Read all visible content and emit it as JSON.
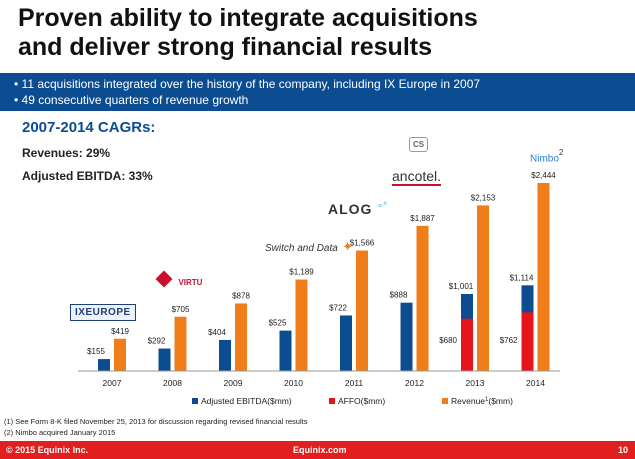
{
  "title_line1": "Proven ability to integrate acquisitions",
  "title_line2": "and deliver strong financial results",
  "bullets": [
    "• 11 acquisitions integrated over the history of the company, including IX Europe in 2007",
    "• 49 consecutive quarters of revenue growth"
  ],
  "cagr": {
    "title": "2007-2014 CAGRs:",
    "revenues": "Revenues: 29%",
    "ebitda": "Adjusted EBITDA: 33%"
  },
  "logos": {
    "ixeurope": "IXEUROPE",
    "virtu": "VIRTU",
    "switch_and_data": "Switch and Data",
    "alog": "ALOG",
    "ancotel": "ancotel.",
    "nimbo": "Nimbo",
    "nimbo_sup": "2",
    "cs": "CS"
  },
  "chart_data": {
    "type": "bar",
    "categories": [
      "2007",
      "2008",
      "2009",
      "2010",
      "2011",
      "2012",
      "2013",
      "2014"
    ],
    "series": [
      {
        "name": "Adjusted EBITDA ($mm)",
        "values": [
          155,
          292,
          404,
          525,
          722,
          888,
          1001,
          1114
        ],
        "labels": [
          "$155",
          "$292",
          "$404",
          "$525",
          "$722",
          "$888",
          "$1,001",
          "$1,114"
        ],
        "color": "#0c4d92"
      },
      {
        "name": "AFFO ($mm)",
        "values": [
          null,
          null,
          null,
          null,
          null,
          null,
          680,
          762
        ],
        "labels": [
          "",
          "",
          "",
          "",
          "",
          "",
          "$680",
          "$762"
        ],
        "color": "#e8141b"
      },
      {
        "name": "Revenue (1) ($mm)",
        "values": [
          419,
          705,
          878,
          1189,
          1566,
          1887,
          2153,
          2444
        ],
        "labels": [
          "$419",
          "$705",
          "$878",
          "$1,189",
          "$1,566",
          "$1,887",
          "$2,153",
          "$2,444"
        ],
        "color": "#ef7d1a"
      }
    ],
    "legend": [
      {
        "label": "Adjusted EBITDA",
        "sup": "",
        "unit": "($mm)",
        "color": "#0c4d92"
      },
      {
        "label": "AFFO",
        "sup": "",
        "unit": "($mm)",
        "color": "#e8141b"
      },
      {
        "label": "Revenue",
        "sup": "1",
        "unit": "($mm)",
        "color": "#ef7d1a"
      }
    ],
    "legend_position": "bottom",
    "grid": false,
    "ylim": [
      0,
      2600
    ]
  },
  "footnotes": [
    "(1)   See Form 8-K filed November 25, 2013 for discussion regarding revised financial results",
    "(2)   Nimbo acquired January 2015"
  ],
  "footer": {
    "copyright": "© 2015 Equinix Inc.",
    "site": "Equinix.com",
    "page": "10"
  }
}
